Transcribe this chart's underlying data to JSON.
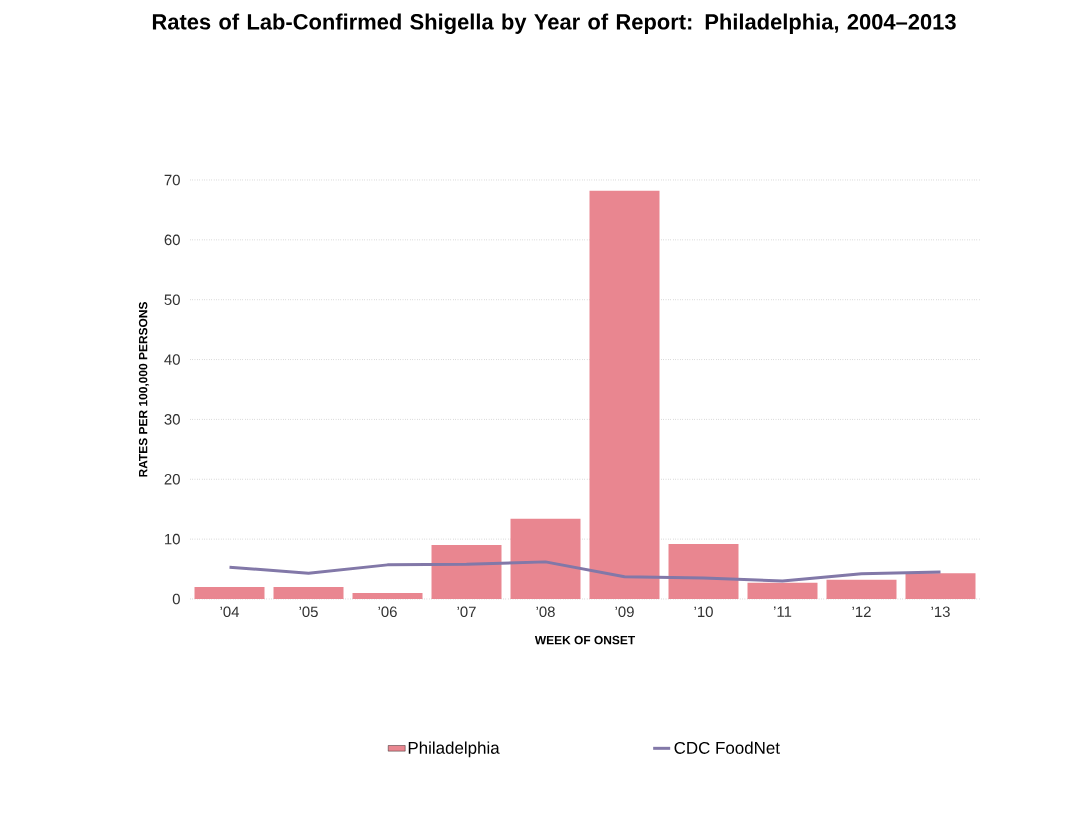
{
  "chart_data": {
    "type": "bar",
    "title": "Rates of Lab-Confirmed Shigella by Year of Report: Philadelphia, 2004–2013",
    "xlabel": "WEEK OF ONSET",
    "ylabel": "RATES PER 100,000 PERSONS",
    "categories": [
      "’04",
      "’05",
      "’06",
      "’07",
      "’08",
      "’09",
      "’10",
      "’11",
      "’12",
      "’13"
    ],
    "series": [
      {
        "name": "Philadelphia",
        "color": "#e98690",
        "values": [
          2.0,
          2.0,
          1.0,
          9.0,
          13.4,
          68.2,
          9.2,
          2.7,
          3.2,
          4.3
        ]
      },
      {
        "name": "CDC FoodNet",
        "type": "line",
        "color": "#8278a8",
        "values": [
          5.3,
          4.3,
          5.7,
          5.8,
          6.2,
          3.7,
          3.5,
          3.0,
          4.2,
          4.5
        ]
      }
    ],
    "ylim": [
      0,
      70
    ],
    "yticks": [
      0,
      10,
      20,
      30,
      40,
      50,
      60,
      70
    ],
    "grid": "y",
    "legend": "bottom"
  }
}
